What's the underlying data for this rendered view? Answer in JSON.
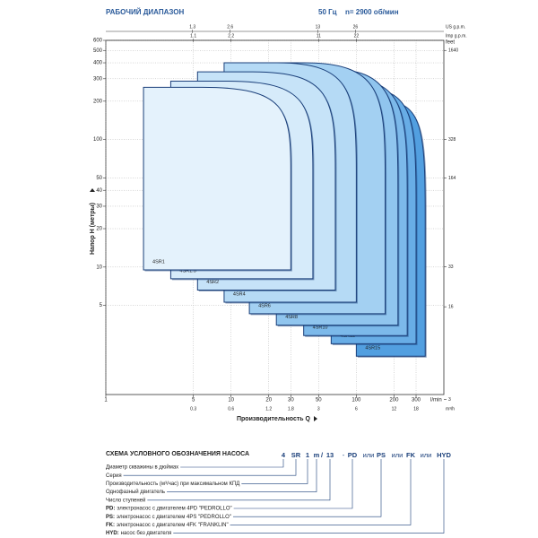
{
  "chart_data": {
    "type": "region",
    "title": "РАБОЧИЙ ДИАПАЗОН",
    "frequency": "50 Гц",
    "speed": "n= 2900 об/мин",
    "x_label": "Производительность Q",
    "y_label": "Напор Н (метры)",
    "x_unit": "l/min",
    "log_x": true,
    "log_y": true,
    "grid": true,
    "xlim": [
      1,
      500
    ],
    "xticks": [
      1,
      5,
      10,
      20,
      30,
      50,
      100,
      200,
      300
    ],
    "ylim": [
      1,
      600
    ],
    "yticks": [
      5,
      10,
      20,
      30,
      40,
      50,
      100,
      200,
      300,
      400,
      500,
      600
    ],
    "x2_axes": [
      {
        "unit": "US g.p.m.",
        "position": "top",
        "lim": [
          0.264,
          132
        ],
        "ticks": [
          1.3,
          2.6,
          13,
          26
        ]
      },
      {
        "unit": "Imp g.p.m.",
        "position": "top",
        "lim": [
          0.22,
          110
        ],
        "ticks": [
          1.1,
          2.2,
          11,
          22
        ]
      },
      {
        "unit": "m³/h",
        "position": "bottom",
        "lim": [
          0.06,
          30
        ],
        "ticks": [
          0.3,
          0.6,
          1.2,
          1.8,
          3,
          6,
          12,
          18
        ]
      }
    ],
    "y2_unit": "feet",
    "y2lim": [
      3.28,
      1968
    ],
    "y2ticks": [
      3,
      16,
      33,
      164,
      328,
      1640
    ],
    "series": [
      {
        "name": "4SR1",
        "color": "#e4f2fc",
        "x": [
          2,
          30
        ],
        "values": [
          9.5,
          257
        ]
      },
      {
        "name": "4SR1.5",
        "color": "#d6ebfa",
        "x": [
          3.3,
          45
        ],
        "values": [
          8.1,
          287
        ]
      },
      {
        "name": "4SR2",
        "color": "#c6e3f8",
        "x": [
          5.4,
          68
        ],
        "values": [
          6.6,
          340
        ]
      },
      {
        "name": "4SR4",
        "color": "#b5daf5",
        "x": [
          8.8,
          100
        ],
        "values": [
          5.3,
          400
        ]
      },
      {
        "name": "4SR6",
        "color": "#a3d0f2",
        "x": [
          14,
          170
        ],
        "values": [
          4.3,
          400
        ]
      },
      {
        "name": "4SR8",
        "color": "#90c5ee",
        "x": [
          23,
          215
        ],
        "values": [
          3.5,
          360
        ]
      },
      {
        "name": "4SR10",
        "color": "#7cb9ea",
        "x": [
          38,
          255
        ],
        "values": [
          2.9,
          300
        ]
      },
      {
        "name": "4SR12",
        "color": "#68ade6",
        "x": [
          63,
          300
        ],
        "values": [
          2.5,
          250
        ]
      },
      {
        "name": "4SR15",
        "color": "#529fe0",
        "x": [
          100,
          355
        ],
        "values": [
          2.0,
          200
        ]
      }
    ]
  },
  "designation_scheme": {
    "title": "СХЕМА УСЛОВНОГО ОБОЗНАЧЕНИЯ НАСОСА",
    "code": [
      "4",
      "SR",
      "1",
      "m",
      "/",
      "13",
      "-",
      "PD",
      "или",
      "PS",
      "или",
      "FK",
      "или",
      "HYD"
    ],
    "rows": [
      {
        "text": "Диаметр скважины в дюймах"
      },
      {
        "text": "Серия"
      },
      {
        "text": "Производительность (м³/час) при максимальном КПД"
      },
      {
        "text": "Однофазный двигатель"
      },
      {
        "text": "Число ступеней"
      },
      {
        "key": "PD:",
        "text": "электронасос с двигателем 4PD \"PEDROLLO\""
      },
      {
        "key": "PS:",
        "text": "электронасос с двигателем 4PS \"PEDROLLO\""
      },
      {
        "key": "FK:",
        "text": "электронасос с двигателем 4FK \"FRANKLIN\""
      },
      {
        "key": "HYD:",
        "text": "насос без двигателя"
      }
    ]
  }
}
